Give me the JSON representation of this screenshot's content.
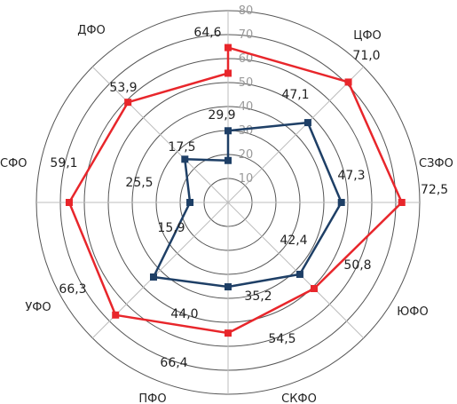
{
  "chart_data": {
    "type": "radar",
    "categories": [
      "ЦФО",
      "СЗФО",
      "ЮФО",
      "СКФО",
      "ПФО",
      "УФО",
      "СФО",
      "ДФО"
    ],
    "series": [
      {
        "values": [
          71.0,
          72.5,
          50.8,
          54.5,
          66.4,
          66.3,
          59.1,
          53.9
        ],
        "labels": [
          "71,0",
          "72,5",
          "50,8",
          "54,5",
          "66,4",
          "66,3",
          "59,1",
          "53,9"
        ],
        "color": "#e8262b"
      },
      {
        "values": [
          47.1,
          47.3,
          42.4,
          35.2,
          44.0,
          15.9,
          25.5,
          17.5
        ],
        "labels": [
          "47,1",
          "47,3",
          "42,4",
          "35,2",
          "44,0",
          "15,9",
          "25,5",
          "17,5"
        ],
        "color": "#1e3f66"
      }
    ],
    "center_values": [
      64.6,
      29.9
    ],
    "center_labels": [
      "64,6",
      "29,9"
    ],
    "r_ticks": [
      "10",
      "20",
      "30",
      "40",
      "50",
      "60",
      "70",
      "80"
    ],
    "r_range": [
      0,
      80
    ],
    "grid": true,
    "grid_color": "#555555",
    "tick_color": "#9a9a9a"
  }
}
